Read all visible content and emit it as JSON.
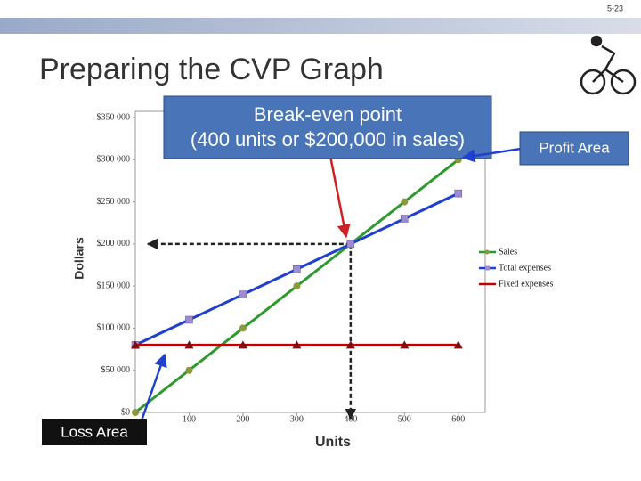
{
  "page_number": "5-23",
  "title": "Preparing the CVP Graph",
  "chart_data": {
    "type": "line",
    "ylabel": "Dollars",
    "xlabel": "Units",
    "x": [
      0,
      100,
      200,
      300,
      400,
      500,
      600
    ],
    "xlim": [
      0,
      650
    ],
    "xticks": [
      100,
      200,
      300,
      400,
      500,
      600
    ],
    "ylim": [
      0,
      350000
    ],
    "yticks": [
      {
        "value": 0,
        "label": "$0"
      },
      {
        "value": 50000,
        "label": "$50 000"
      },
      {
        "value": 100000,
        "label": "$100 000"
      },
      {
        "value": 150000,
        "label": "$150 000"
      },
      {
        "value": 200000,
        "label": "$200 000"
      },
      {
        "value": 250000,
        "label": "$250 000"
      },
      {
        "value": 300000,
        "label": "$300 000"
      },
      {
        "value": 350000,
        "label": "$350 000"
      }
    ],
    "legend": "right",
    "series": [
      {
        "name": "Sales",
        "color": "#2e9a2e",
        "marker": "circle",
        "marker_color": "#8a9a3a",
        "values": [
          0,
          50000,
          100000,
          150000,
          200000,
          250000,
          300000
        ]
      },
      {
        "name": "Total expenses",
        "color": "#1f3fd0",
        "marker": "square",
        "marker_color": "#a08ad0",
        "values": [
          80000,
          110000,
          140000,
          170000,
          200000,
          230000,
          260000
        ]
      },
      {
        "name": "Fixed expenses",
        "color": "#c00000",
        "marker": "triangle",
        "marker_color": "#7a1010",
        "values": [
          80000,
          80000,
          80000,
          80000,
          80000,
          80000,
          80000
        ]
      }
    ],
    "annotations": {
      "break_even": [
        "Break-even point",
        "(400 units or $200,000 in sales)"
      ],
      "profit_area": "Profit Area",
      "loss_area": "Loss Area"
    }
  }
}
